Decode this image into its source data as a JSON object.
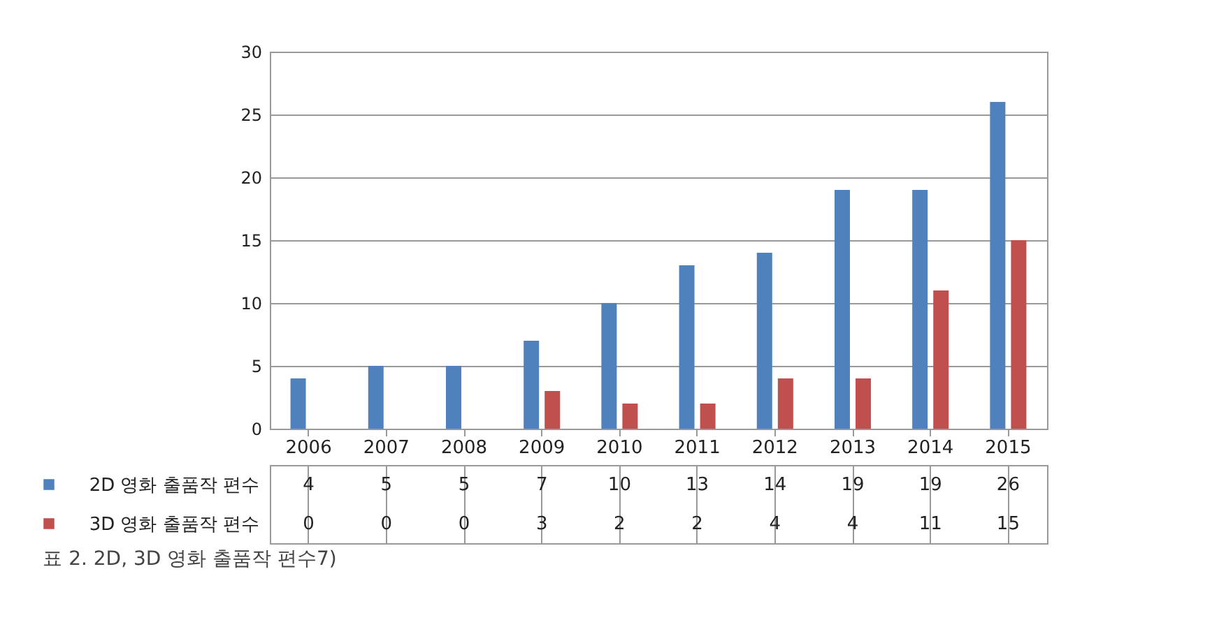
{
  "chart_data": {
    "type": "bar",
    "categories": [
      "2006",
      "2007",
      "2008",
      "2009",
      "2010",
      "2011",
      "2012",
      "2013",
      "2014",
      "2015"
    ],
    "series": [
      {
        "name": "2D 영화 출품작 편수",
        "color": "#4f81bd",
        "values": [
          4,
          5,
          5,
          7,
          10,
          13,
          14,
          19,
          19,
          26
        ]
      },
      {
        "name": "3D 영화 출품작 편수",
        "color": "#c0504d",
        "values": [
          0,
          0,
          0,
          3,
          2,
          2,
          4,
          4,
          11,
          15
        ]
      }
    ],
    "ylim": [
      0,
      30
    ],
    "yticks": [
      0,
      5,
      10,
      15,
      20,
      25,
      30
    ],
    "grid": "y",
    "data_labels": true,
    "legend": "bottom",
    "annotations": [
      "표 2. 2D, 3D 영화 출품작 편수7)"
    ]
  }
}
